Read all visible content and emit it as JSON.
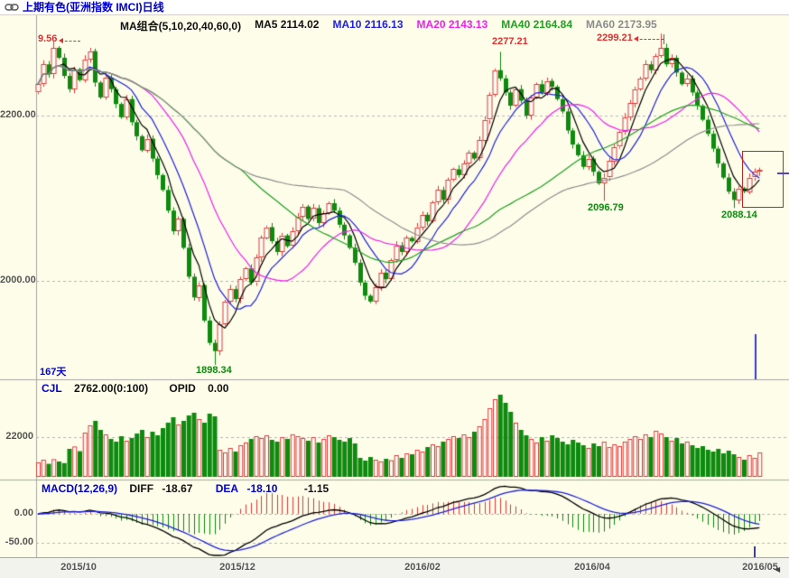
{
  "window": {
    "title": "上期有色(亚洲指数 IMCI)日线"
  },
  "main_chart": {
    "legend": {
      "group": "MA组合(5,10,20,40,60,0)",
      "ma5": "MA5 2114.02",
      "ma10": "MA10 2116.13",
      "ma20": "MA20 2143.13",
      "ma40": "MA40 2164.84",
      "ma60": "MA60 2173.95"
    },
    "yticks": [
      "2200.00",
      "2000.00"
    ],
    "annotations": {
      "first_high": "9.56",
      "high_feb": "2277.21",
      "high_apr": "2299.21",
      "low_mar": "2096.79",
      "low_may": "2088.14",
      "low_min": "1898.34"
    },
    "days_label": "167天"
  },
  "volume_panel": {
    "name": "CJL",
    "value": "2762.00(0:100)",
    "opid_label": "OPID",
    "opid_value": "0.00",
    "ytick": "22000"
  },
  "macd_panel": {
    "name": "MACD(12,26,9)",
    "diff_label": "DIFF",
    "diff_value": "-18.67",
    "dea_label": "DEA",
    "dea_value": "-18.10",
    "hist_value": "-1.15",
    "yticks": [
      "0.00",
      "-50.00"
    ]
  },
  "xaxis": {
    "ticks": [
      "2015/10",
      "2015/12",
      "2016/02",
      "2016/04",
      "2016/05"
    ]
  },
  "colors": {
    "up": "#DC3C3C",
    "down": "#0E8A0E",
    "ma_lines": [
      "#000000",
      "#2222DD",
      "#EE22EE",
      "#22A022",
      "#909090"
    ],
    "diff_line": "#000000",
    "dea_line": "#2222DD",
    "annotation_high": "#DC3232",
    "annotation_low": "#0E8A0E",
    "info_text": "#0000CC",
    "background": "#FDFDE9"
  },
  "chart_data": [
    {
      "type": "candlestick",
      "title": "上期有色(亚洲指数 IMCI)日线",
      "ylim": [
        1870,
        2310
      ],
      "yticks": [
        2200,
        2000
      ],
      "x_tick_labels": [
        "2015/10",
        "2015/12",
        "2016/02",
        "2016/04",
        "2016/05"
      ],
      "x_tick_bar_index": [
        7,
        38,
        73,
        106,
        138
      ],
      "days_shown": 167,
      "ma_periods": [
        5,
        10,
        20,
        40,
        60
      ],
      "ma_last_values": {
        "MA5": 2114.02,
        "MA10": 2116.13,
        "MA20": 2143.13,
        "MA40": 2164.84,
        "MA60": 2173.95
      },
      "key_points": {
        "high_1": 2277.21,
        "high_2": 2299.21,
        "pullback_low": 2096.79,
        "final_low": 2088.14,
        "min_low": 1898.34
      },
      "closes": [
        2238,
        2262,
        2250,
        2282,
        2270,
        2248,
        2232,
        2256,
        2243,
        2268,
        2278,
        2240,
        2222,
        2246,
        2232,
        2214,
        2198,
        2220,
        2192,
        2175,
        2158,
        2172,
        2148,
        2128,
        2110,
        2085,
        2060,
        2075,
        2040,
        2005,
        1980,
        1995,
        1952,
        1925,
        1915,
        1948,
        1975,
        1990,
        1978,
        2002,
        2015,
        1998,
        2028,
        2052,
        2065,
        2048,
        2035,
        2055,
        2042,
        2060,
        2078,
        2090,
        2075,
        2088,
        2070,
        2082,
        2094,
        2085,
        2068,
        2055,
        2040,
        2022,
        1998,
        1982,
        1975,
        1992,
        2010,
        2002,
        2025,
        2043,
        2035,
        2052,
        2048,
        2065,
        2080,
        2072,
        2095,
        2110,
        2098,
        2122,
        2135,
        2128,
        2142,
        2155,
        2148,
        2170,
        2195,
        2225,
        2255,
        2245,
        2228,
        2212,
        2232,
        2218,
        2200,
        2222,
        2238,
        2228,
        2242,
        2235,
        2220,
        2205,
        2182,
        2165,
        2152,
        2138,
        2148,
        2132,
        2118,
        2125,
        2145,
        2162,
        2180,
        2198,
        2215,
        2232,
        2245,
        2262,
        2255,
        2272,
        2282,
        2262,
        2270,
        2252,
        2238,
        2245,
        2228,
        2212,
        2195,
        2178,
        2160,
        2142,
        2125,
        2108,
        2098,
        2112,
        2108,
        2125,
        2132,
        2134
      ],
      "spikes": {
        "3": {
          "high": 2290.56
        },
        "34": {
          "low": 1898.34
        },
        "89": {
          "high": 2277.21
        },
        "109": {
          "low": 2096.79
        },
        "120": {
          "high": 2299.21
        },
        "134": {
          "low": 2088.14
        }
      }
    },
    {
      "type": "bar",
      "name": "CJL",
      "displayed_value": 2762.0,
      "opid": 0.0,
      "ytick_value": 22000,
      "values": [
        8000,
        9500,
        7200,
        9800,
        8500,
        7600,
        15500,
        16800,
        14200,
        24500,
        28500,
        31000,
        26000,
        23500,
        21000,
        19500,
        22500,
        20000,
        21500,
        24000,
        26000,
        22000,
        25000,
        23000,
        27000,
        30000,
        33000,
        29000,
        31000,
        34000,
        35500,
        32000,
        30000,
        35000,
        33500,
        15000,
        13500,
        16000,
        14000,
        17500,
        19000,
        21000,
        22500,
        21500,
        23000,
        20500,
        19500,
        22000,
        21000,
        23500,
        22500,
        21500,
        20000,
        22000,
        19000,
        21000,
        23000,
        22000,
        20500,
        19500,
        21500,
        18500,
        10500,
        9000,
        11000,
        9500,
        8500,
        10000,
        9200,
        12000,
        10500,
        13000,
        12500,
        15000,
        14000,
        16500,
        18000,
        17000,
        19500,
        21000,
        22500,
        21500,
        23500,
        22000,
        25000,
        28000,
        32000,
        38000,
        43000,
        45500,
        41000,
        36000,
        30000,
        26000,
        23000,
        21000,
        19000,
        22000,
        20000,
        23000,
        21500,
        19500,
        18000,
        20500,
        19000,
        17500,
        16000,
        18500,
        17000,
        19500,
        16500,
        18000,
        17000,
        19500,
        21000,
        22500,
        21000,
        23500,
        22000,
        25500,
        24000,
        22000,
        20000,
        21500,
        18500,
        19500,
        17500,
        16000,
        17000,
        15000,
        14000,
        15500,
        13000,
        14500,
        12500,
        11000,
        9500,
        12000,
        10500,
        13500
      ]
    },
    {
      "type": "macd",
      "params": [
        12,
        26,
        9
      ],
      "diff": -18.67,
      "dea": -18.1,
      "hist": -1.15,
      "yticks": [
        0,
        -50
      ]
    }
  ]
}
